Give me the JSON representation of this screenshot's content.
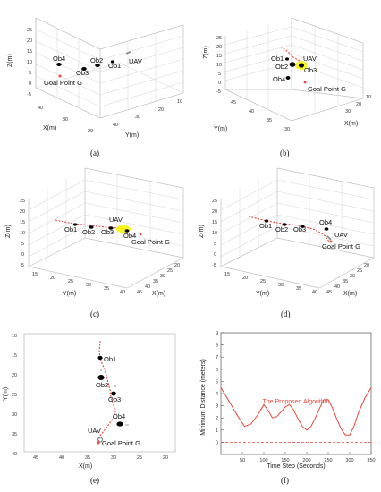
{
  "captions": [
    "(a)",
    "(b)",
    "(c)",
    "(d)",
    "(e)",
    "(f)"
  ],
  "labels": {
    "uav": "UAV",
    "ob1": "Ob1",
    "ob2": "Ob2",
    "ob3": "Ob3",
    "ob4": "Ob4",
    "goal": "Goal Point G",
    "x": "X(m)",
    "y": "Y(m)",
    "z": "Z(m)",
    "time": "Time Step (Seconds)",
    "mindist": "Minimum Distance (meters)",
    "legend": "The Proposed Algorithm"
  },
  "colors": {
    "path": "#e8463b",
    "uav_glow": "#f4f400",
    "obstacle": "#000000",
    "goal": "#e8463b"
  },
  "panels_3d": [
    {
      "caption": "(a)",
      "z_ticks": [
        "25",
        "20",
        "15",
        "10",
        "5",
        "0",
        "-5"
      ],
      "x_ticks": [
        "40",
        "30",
        "20"
      ],
      "y_ticks": [
        "10",
        "20",
        "30",
        "40"
      ]
    },
    {
      "caption": "(b)",
      "z_ticks": [
        "25",
        "20",
        "15",
        "10",
        "5",
        "0",
        "-5"
      ],
      "x_ticks": [
        "30",
        "20",
        "10"
      ],
      "y_ticks": [
        "45",
        "40",
        "35",
        "30"
      ]
    },
    {
      "caption": "(c)",
      "z_ticks": [
        "25",
        "20",
        "15",
        "10",
        "5",
        "0",
        "-5"
      ],
      "x_ticks": [
        "20",
        "25",
        "30",
        "35",
        "40",
        "45"
      ],
      "y_ticks": [
        "15",
        "20",
        "25",
        "30",
        "35",
        "40"
      ]
    },
    {
      "caption": "(d)",
      "z_ticks": [
        "25",
        "20",
        "15",
        "10",
        "5",
        "0",
        "-5"
      ],
      "x_ticks": [
        "20",
        "25",
        "30",
        "35",
        "40",
        "45"
      ],
      "y_ticks": [
        "15",
        "20",
        "25",
        "30",
        "35",
        "40"
      ]
    }
  ],
  "panel_e": {
    "x_ticks": [
      "45",
      "40",
      "35",
      "30",
      "25",
      "20"
    ],
    "y_ticks": [
      "10",
      "15",
      "20",
      "25",
      "30",
      "35",
      "40"
    ],
    "xlim": [
      47,
      18
    ],
    "ylim": [
      10,
      40
    ]
  },
  "chart_data": {
    "type": "line",
    "title": "",
    "xlabel": "Time Step (Seconds)",
    "ylabel": "Minimum Distance (meters)",
    "xlim": [
      0,
      350
    ],
    "ylim": [
      -1,
      9
    ],
    "xticks": [
      50,
      100,
      150,
      200,
      250,
      300,
      350
    ],
    "yticks": [
      0,
      1,
      2,
      3,
      4,
      5,
      6,
      7,
      8,
      9
    ],
    "grid": false,
    "legend": "inside-center",
    "series": [
      {
        "name": "The Proposed Algorithm",
        "x": [
          0,
          20,
          40,
          55,
          70,
          85,
          100,
          110,
          120,
          130,
          140,
          150,
          160,
          170,
          180,
          190,
          200,
          210,
          220,
          230,
          240,
          250,
          260,
          270,
          280,
          290,
          300,
          310,
          320,
          335,
          350
        ],
        "y": [
          4.5,
          3.3,
          2.1,
          1.3,
          1.5,
          2.2,
          3.1,
          2.6,
          2.0,
          2.1,
          2.5,
          2.9,
          3.1,
          2.6,
          1.9,
          1.3,
          1.0,
          1.3,
          2.0,
          2.8,
          3.5,
          3.5,
          2.8,
          1.9,
          1.1,
          0.6,
          0.6,
          1.3,
          2.4,
          3.6,
          4.5
        ],
        "style": "line"
      },
      {
        "name": "",
        "x": [
          0,
          350
        ],
        "y": [
          0,
          0
        ],
        "style": "dashed"
      }
    ]
  }
}
